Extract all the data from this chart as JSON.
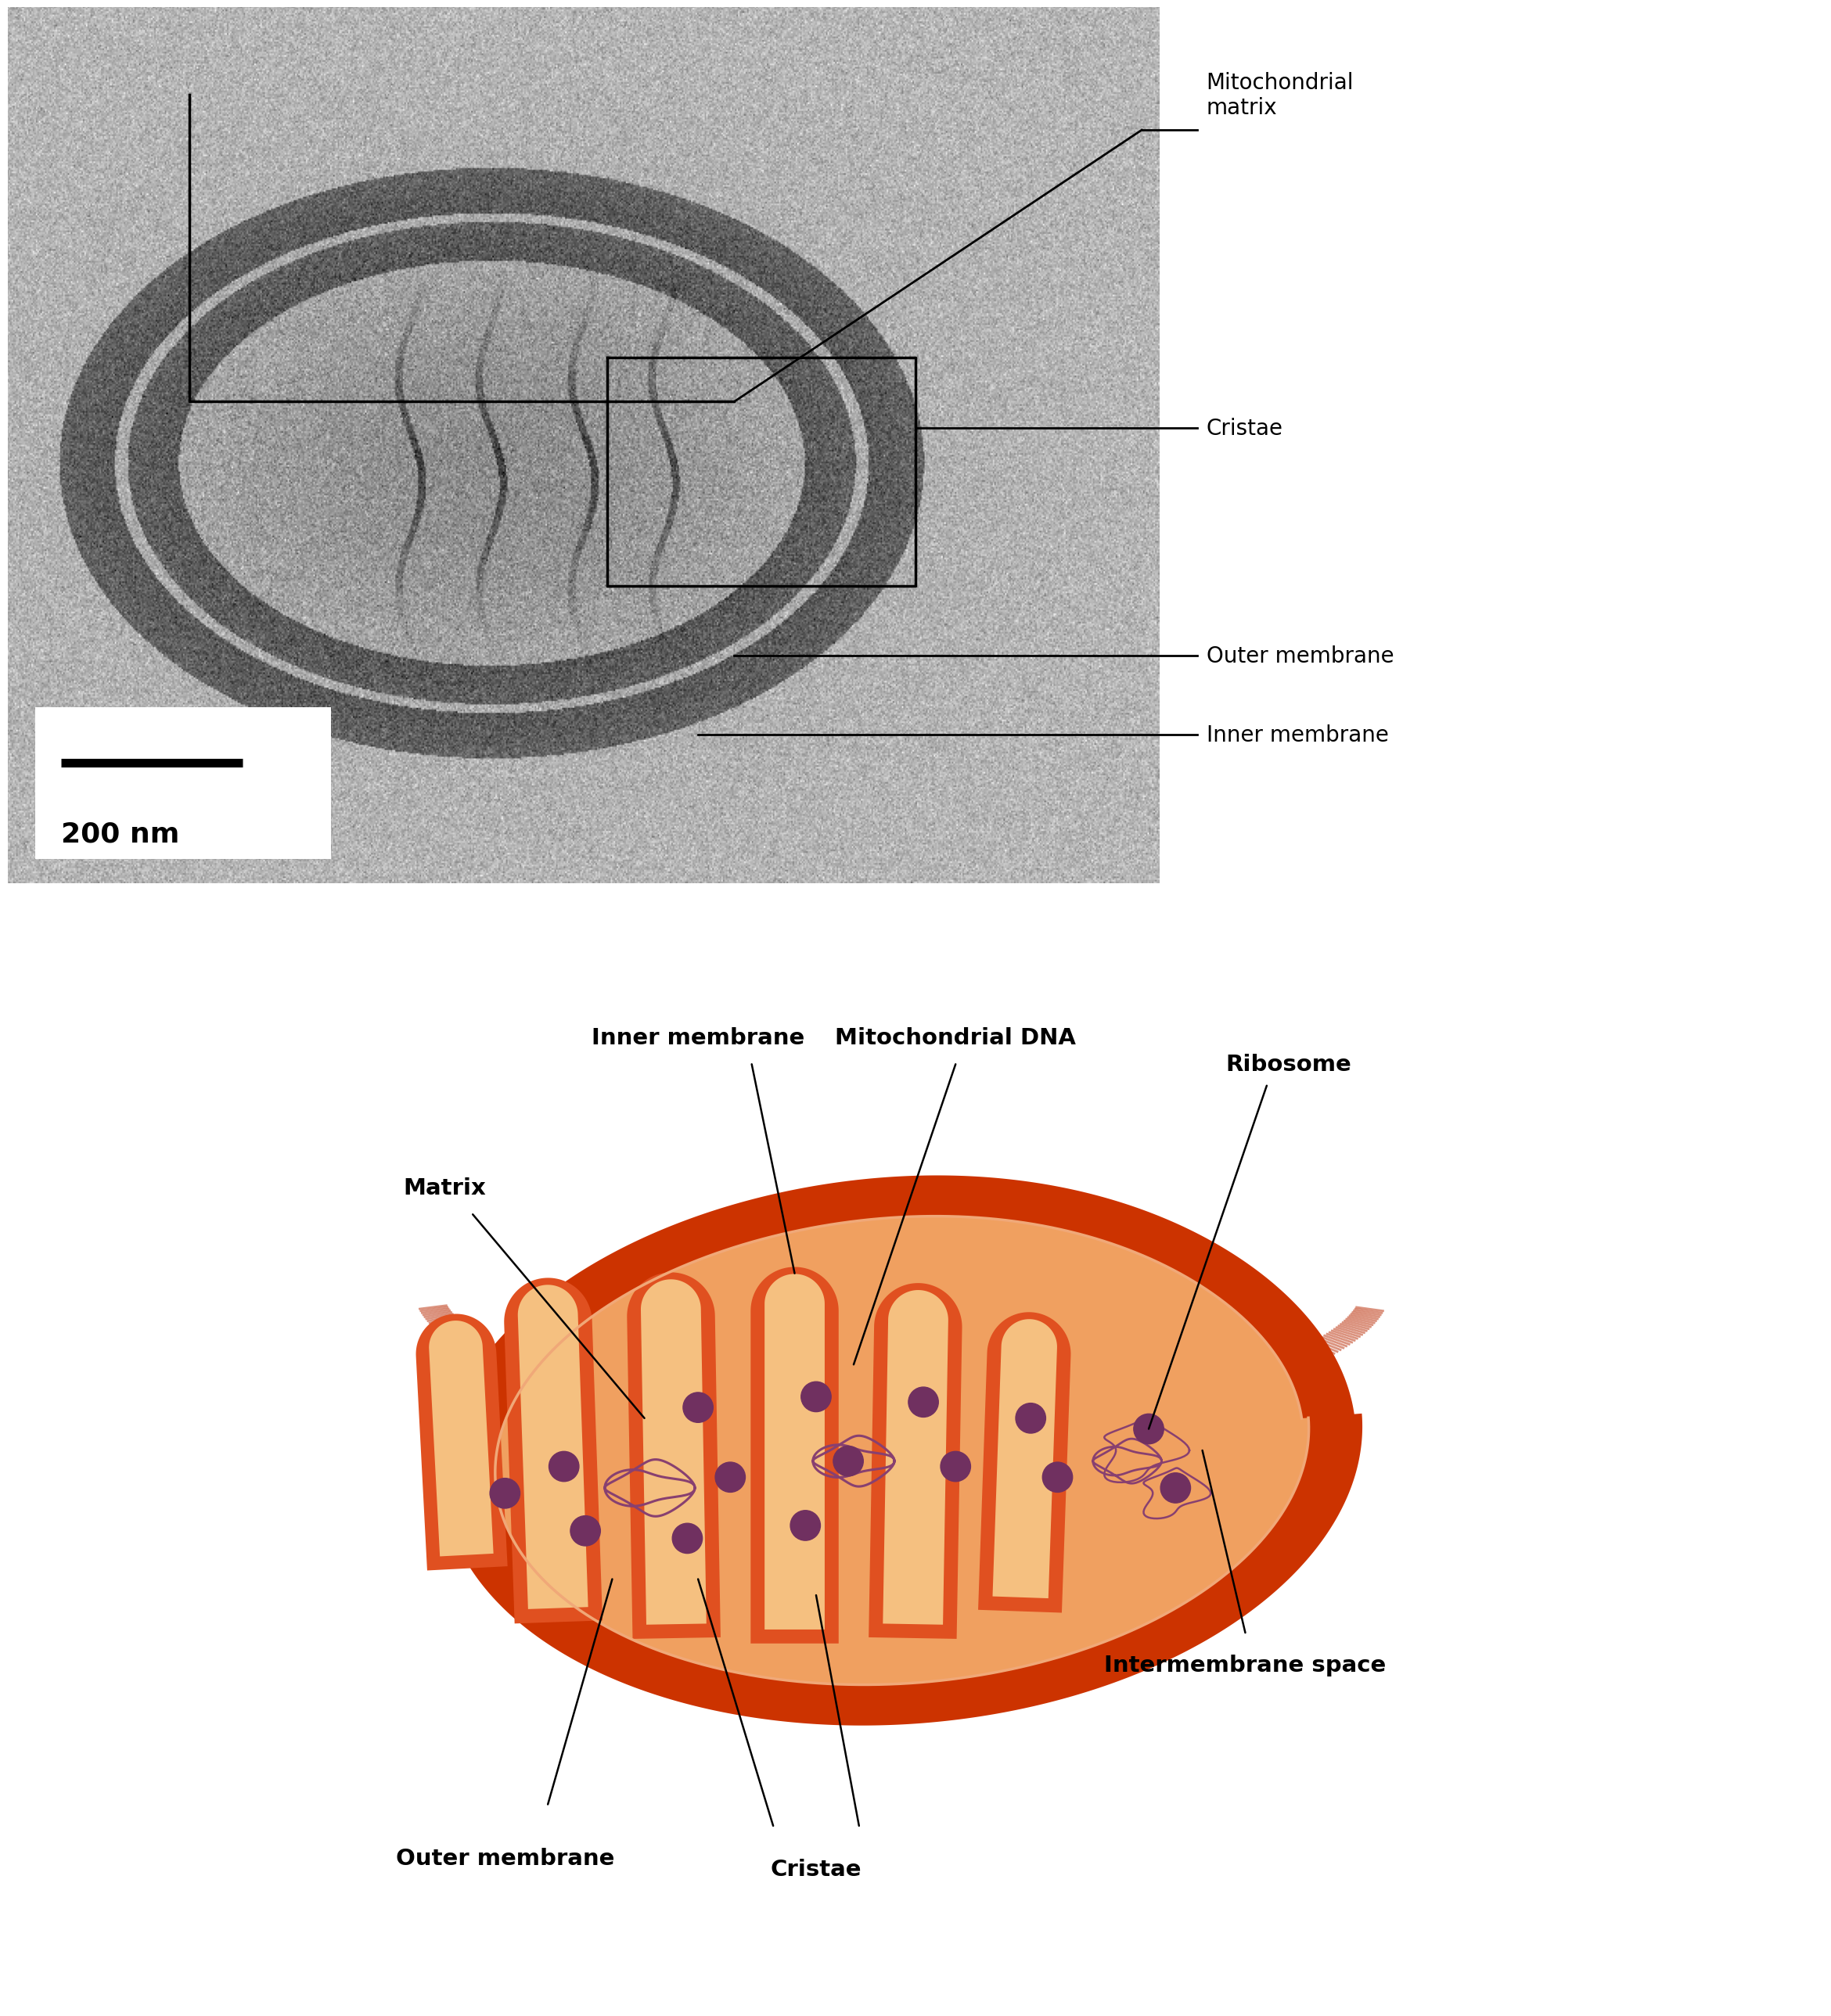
{
  "background_color": "#ffffff",
  "figure_width": 23.56,
  "figure_height": 26.37,
  "top_panel": {
    "scalebar_label": "200 nm",
    "border_lw": 2.5
  },
  "bottom_panel": {
    "col_outer_dark": "#B82800",
    "col_outer": "#CC3300",
    "col_outer_mid": "#D94010",
    "col_inner": "#E05020",
    "col_matrix": "#F0A060",
    "col_cristae": "#F5C080",
    "col_cristae_light": "#FACCAA",
    "col_ribosome": "#703060",
    "col_dna": "#884070",
    "col_intermembrane": "#E07850"
  }
}
